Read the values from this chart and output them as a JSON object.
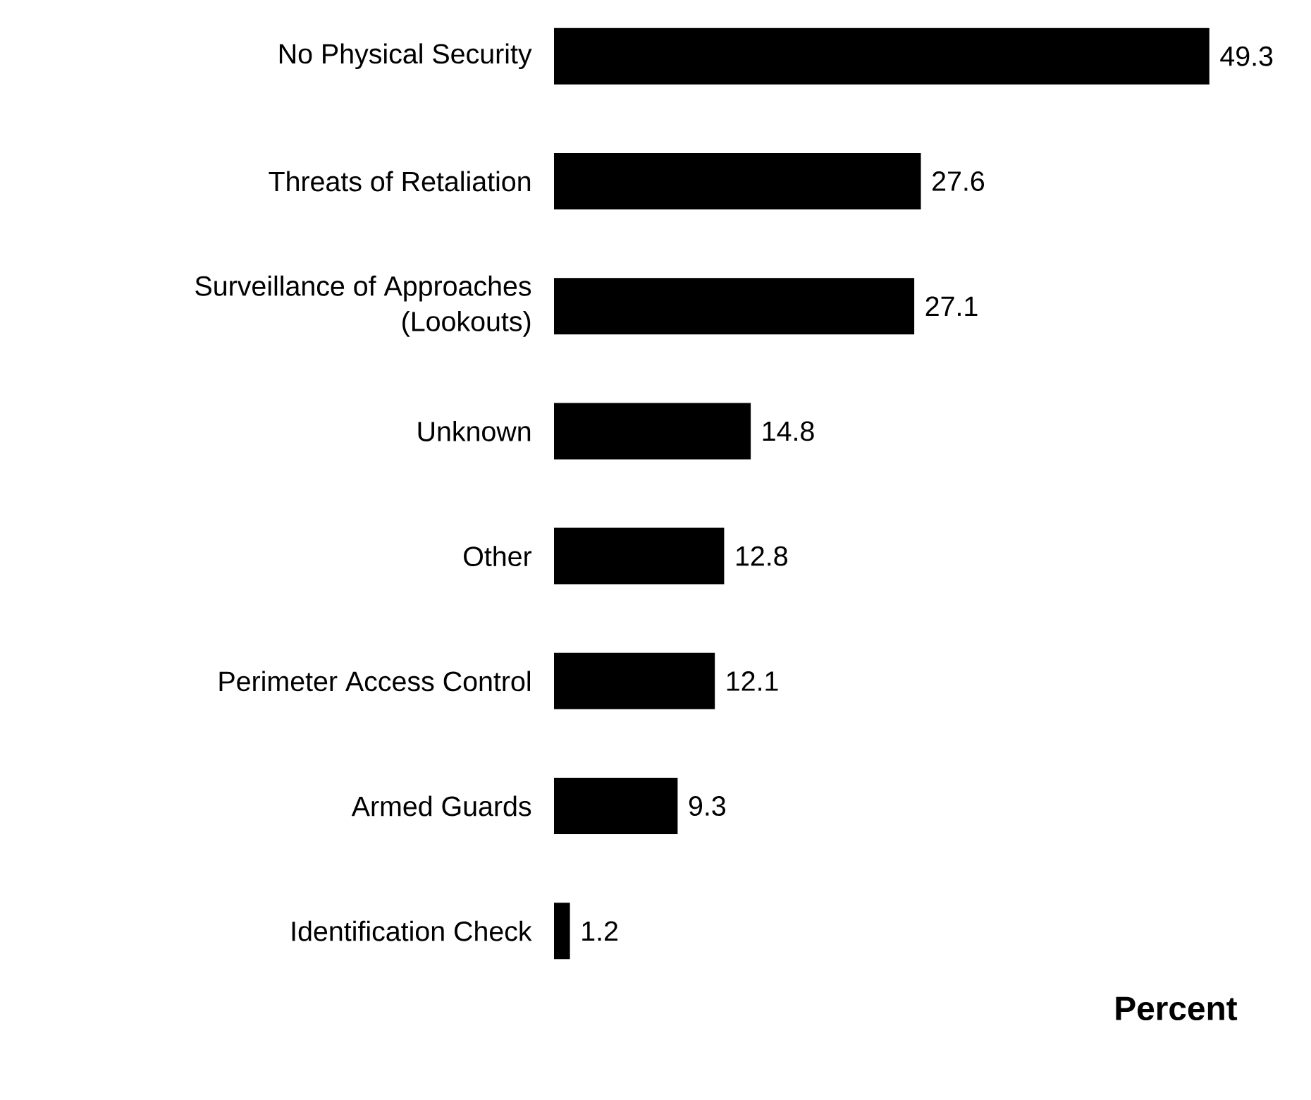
{
  "chart_data": {
    "type": "bar",
    "orientation": "horizontal",
    "xlabel": "Percent",
    "categories": [
      "No Physical Security",
      "Threats of Retaliation",
      "Surveillance of Approaches (Lookouts)",
      "Unknown",
      "Other",
      "Perimeter Access Control",
      "Armed Guards",
      "Identification Check"
    ],
    "values": [
      49.3,
      27.6,
      27.1,
      14.8,
      12.8,
      12.1,
      9.3,
      1.2
    ],
    "color": "#000000",
    "data_labels": true
  }
}
